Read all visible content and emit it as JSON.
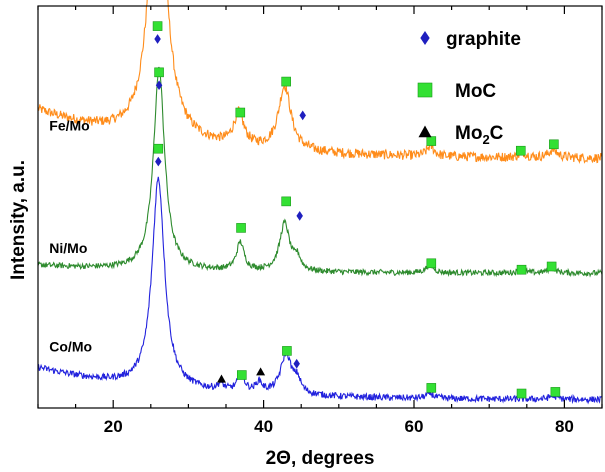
{
  "chart_data": {
    "type": "line",
    "title": "",
    "xlabel": "2Θ, degrees",
    "ylabel": "Intensity, a.u.",
    "xlim": [
      10,
      85
    ],
    "ylim": [
      0,
      1
    ],
    "grid": false,
    "x_ticks": [
      20,
      40,
      60,
      80
    ],
    "legend": {
      "placement": "top-right",
      "entries": [
        {
          "label": "graphite",
          "marker": "diamond",
          "color": "#1f1fbf"
        },
        {
          "label": "MoC",
          "marker": "square",
          "color": "#33e033"
        },
        {
          "label": "Mo",
          "label_sub": "2",
          "label_suffix": "C",
          "marker": "triangle",
          "color": "#000000"
        }
      ]
    },
    "series": [
      {
        "name": "Fe/Mo",
        "color": "#ff8c1a",
        "baseline": 0.62,
        "x_start": 10,
        "x_end": 85,
        "start_level": 0.12,
        "end_level": 0.0,
        "peaks": [
          {
            "x": 25.9,
            "height": 0.73,
            "width": 1.3
          },
          {
            "x": 36.7,
            "height": 0.08,
            "width": 0.8
          },
          {
            "x": 42.8,
            "height": 0.16,
            "width": 1.0
          },
          {
            "x": 62.2,
            "height": 0.025,
            "width": 0.6
          },
          {
            "x": 74.5,
            "height": 0.012,
            "width": 0.6
          },
          {
            "x": 78.5,
            "height": 0.02,
            "width": 0.7
          }
        ],
        "noise": 0.012,
        "markers": [
          {
            "x": 25.9,
            "y": 0.95,
            "type": "square"
          },
          {
            "x": 25.9,
            "y": 0.918,
            "type": "diamond"
          },
          {
            "x": 36.9,
            "y": 0.735,
            "type": "square"
          },
          {
            "x": 43.0,
            "y": 0.812,
            "type": "square"
          },
          {
            "x": 45.2,
            "y": 0.728,
            "type": "diamond"
          },
          {
            "x": 62.3,
            "y": 0.664,
            "type": "square"
          },
          {
            "x": 74.2,
            "y": 0.64,
            "type": "square"
          },
          {
            "x": 78.6,
            "y": 0.656,
            "type": "square"
          }
        ]
      },
      {
        "name": "Ni/Mo",
        "color": "#2e8b2e",
        "baseline": 0.335,
        "x_start": 10,
        "x_end": 85,
        "start_level": 0.02,
        "end_level": 0.0,
        "peaks": [
          {
            "x": 26.1,
            "height": 0.5,
            "width": 0.9
          },
          {
            "x": 36.9,
            "height": 0.07,
            "width": 0.6
          },
          {
            "x": 42.8,
            "height": 0.12,
            "width": 0.8
          },
          {
            "x": 44.5,
            "height": 0.03,
            "width": 0.5
          },
          {
            "x": 62.1,
            "height": 0.02,
            "width": 0.6
          },
          {
            "x": 74.3,
            "height": 0.008,
            "width": 0.6
          },
          {
            "x": 78.3,
            "height": 0.012,
            "width": 0.7
          }
        ],
        "noise": 0.007,
        "markers": [
          {
            "x": 26.1,
            "y": 0.835,
            "type": "square"
          },
          {
            "x": 26.1,
            "y": 0.803,
            "type": "diamond"
          },
          {
            "x": 37.0,
            "y": 0.448,
            "type": "square"
          },
          {
            "x": 43.0,
            "y": 0.514,
            "type": "square"
          },
          {
            "x": 44.8,
            "y": 0.478,
            "type": "diamond"
          },
          {
            "x": 62.3,
            "y": 0.36,
            "type": "square"
          },
          {
            "x": 74.3,
            "y": 0.344,
            "type": "square"
          },
          {
            "x": 78.3,
            "y": 0.352,
            "type": "square"
          }
        ]
      },
      {
        "name": "Co/Mo",
        "color": "#2222dd",
        "baseline": 0.02,
        "x_start": 10,
        "x_end": 85,
        "start_level": 0.08,
        "end_level": 0.0,
        "peaks": [
          {
            "x": 26.0,
            "height": 0.52,
            "width": 1.0
          },
          {
            "x": 34.3,
            "height": 0.015,
            "width": 0.5
          },
          {
            "x": 37.0,
            "height": 0.04,
            "width": 0.6
          },
          {
            "x": 39.4,
            "height": 0.025,
            "width": 0.5
          },
          {
            "x": 43.0,
            "height": 0.1,
            "width": 0.9
          },
          {
            "x": 44.5,
            "height": 0.03,
            "width": 0.5
          },
          {
            "x": 62.1,
            "height": 0.012,
            "width": 0.6
          },
          {
            "x": 78.5,
            "height": 0.008,
            "width": 0.7
          }
        ],
        "noise": 0.008,
        "markers": [
          {
            "x": 26.0,
            "y": 0.645,
            "type": "square"
          },
          {
            "x": 26.0,
            "y": 0.613,
            "type": "diamond"
          },
          {
            "x": 34.4,
            "y": 0.072,
            "type": "triangle"
          },
          {
            "x": 37.1,
            "y": 0.082,
            "type": "square"
          },
          {
            "x": 39.6,
            "y": 0.09,
            "type": "triangle"
          },
          {
            "x": 43.1,
            "y": 0.142,
            "type": "square"
          },
          {
            "x": 44.4,
            "y": 0.11,
            "type": "diamond"
          },
          {
            "x": 62.3,
            "y": 0.05,
            "type": "square"
          },
          {
            "x": 74.3,
            "y": 0.036,
            "type": "square"
          },
          {
            "x": 78.8,
            "y": 0.04,
            "type": "square"
          }
        ]
      }
    ],
    "sample_labels": [
      {
        "text": "Fe/Mo",
        "x": 11.5,
        "y": 0.69
      },
      {
        "text": "Ni/Mo",
        "x": 11.5,
        "y": 0.385
      },
      {
        "text": "Co/Mo",
        "x": 11.5,
        "y": 0.14
      }
    ]
  }
}
